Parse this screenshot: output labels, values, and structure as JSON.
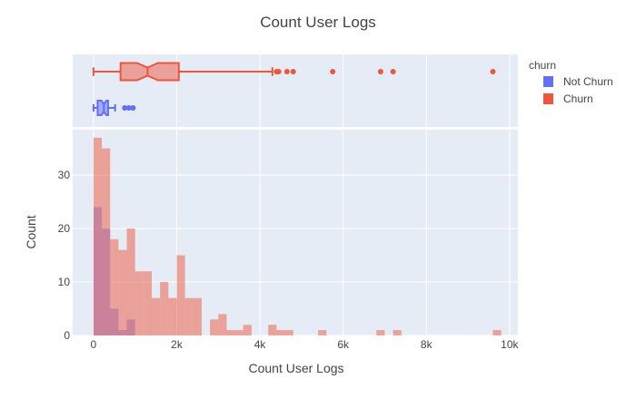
{
  "chart_data": {
    "type": "histogram",
    "title": "Count User Logs",
    "xlabel": "Count User Logs",
    "ylabel": "Count",
    "xlim": [
      -500,
      10200
    ],
    "ylim": [
      0,
      38.5
    ],
    "x_ticks": [
      0,
      2000,
      4000,
      6000,
      8000,
      10000
    ],
    "x_tick_labels": [
      "0",
      "2k",
      "4k",
      "6k",
      "8k",
      "10k"
    ],
    "y_ticks": [
      0,
      10,
      20,
      30
    ],
    "y_tick_labels": [
      "0",
      "10",
      "20",
      "30"
    ],
    "bin_width": 200,
    "barmode": "overlay",
    "grid": true,
    "legend": {
      "title": "churn",
      "position": "top-right"
    },
    "series": [
      {
        "name": "Not Churn",
        "color": "#636efa",
        "bins": [
          {
            "x0": 0,
            "count": 24
          },
          {
            "x0": 200,
            "count": 20
          },
          {
            "x0": 400,
            "count": 5
          },
          {
            "x0": 600,
            "count": 1
          },
          {
            "x0": 800,
            "count": 3
          }
        ],
        "box": {
          "min": 0,
          "q1": 100,
          "median": 250,
          "q3": 350,
          "max": 520,
          "notch": [
            190,
            310
          ],
          "outliers": [
            750,
            850,
            950
          ]
        }
      },
      {
        "name": "Churn",
        "color": "#ef553b",
        "bins": [
          {
            "x0": 0,
            "count": 37
          },
          {
            "x0": 200,
            "count": 35
          },
          {
            "x0": 400,
            "count": 18
          },
          {
            "x0": 600,
            "count": 16
          },
          {
            "x0": 800,
            "count": 20
          },
          {
            "x0": 1000,
            "count": 12
          },
          {
            "x0": 1200,
            "count": 12
          },
          {
            "x0": 1400,
            "count": 7
          },
          {
            "x0": 1600,
            "count": 10
          },
          {
            "x0": 1800,
            "count": 7
          },
          {
            "x0": 2000,
            "count": 15
          },
          {
            "x0": 2200,
            "count": 7
          },
          {
            "x0": 2400,
            "count": 7
          },
          {
            "x0": 2800,
            "count": 3
          },
          {
            "x0": 3000,
            "count": 4
          },
          {
            "x0": 3200,
            "count": 1
          },
          {
            "x0": 3400,
            "count": 1
          },
          {
            "x0": 3600,
            "count": 2
          },
          {
            "x0": 4200,
            "count": 2
          },
          {
            "x0": 4400,
            "count": 1
          },
          {
            "x0": 4600,
            "count": 1
          },
          {
            "x0": 5400,
            "count": 1
          },
          {
            "x0": 6800,
            "count": 1
          },
          {
            "x0": 7200,
            "count": 1
          },
          {
            "x0": 9600,
            "count": 1
          }
        ],
        "box": {
          "min": 0,
          "q1": 650,
          "median": 1300,
          "q3": 2050,
          "max": 4300,
          "notch": [
            1050,
            1550
          ],
          "outliers": [
            4400,
            4450,
            4650,
            4800,
            5750,
            6900,
            7200,
            9600
          ]
        }
      }
    ]
  }
}
